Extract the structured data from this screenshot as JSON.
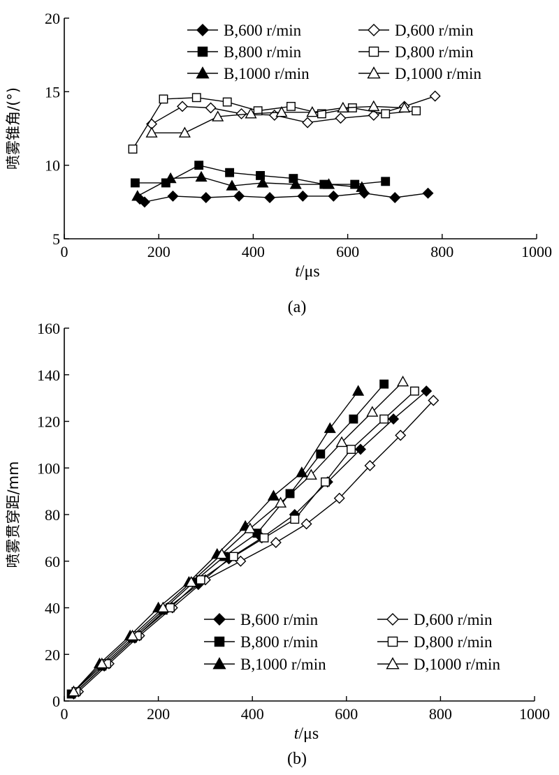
{
  "chart_data": [
    {
      "type": "line",
      "caption": "(a)",
      "xlabel_italic": "t",
      "xlabel_unit": "/μs",
      "ylabel": "喷雾锥角/(°)",
      "xlim": [
        0,
        1000
      ],
      "ylim": [
        5,
        20
      ],
      "xticks": [
        0,
        200,
        400,
        600,
        800,
        1000
      ],
      "yticks": [
        5,
        10,
        15,
        20
      ],
      "legend": "top",
      "series": [
        {
          "name": "B,600 r/min",
          "marker": "diamond",
          "filled": true,
          "x": [
            160,
            170,
            230,
            300,
            370,
            435,
            505,
            570,
            635,
            700,
            770
          ],
          "y": [
            7.7,
            7.5,
            7.9,
            7.8,
            7.9,
            7.8,
            7.9,
            7.9,
            8.1,
            7.8,
            8.1
          ]
        },
        {
          "name": "D,600 r/min",
          "marker": "diamond",
          "filled": false,
          "x": [
            185,
            250,
            310,
            375,
            445,
            515,
            585,
            655,
            720,
            785
          ],
          "y": [
            12.8,
            14.0,
            13.9,
            13.5,
            13.4,
            12.9,
            13.2,
            13.4,
            14.0,
            14.7
          ]
        },
        {
          "name": "B,800 r/min",
          "marker": "square",
          "filled": true,
          "x": [
            150,
            215,
            285,
            350,
            415,
            485,
            550,
            615,
            680
          ],
          "y": [
            8.8,
            8.8,
            10.0,
            9.5,
            9.3,
            9.1,
            8.7,
            8.7,
            8.9
          ]
        },
        {
          "name": "D,800 r/min",
          "marker": "square",
          "filled": false,
          "x": [
            145,
            210,
            280,
            345,
            410,
            480,
            545,
            610,
            680,
            745
          ],
          "y": [
            11.1,
            14.5,
            14.6,
            14.3,
            13.7,
            14.0,
            13.5,
            13.9,
            13.5,
            13.7
          ]
        },
        {
          "name": "B,1000 r/min",
          "marker": "triangle",
          "filled": true,
          "x": [
            155,
            225,
            290,
            355,
            420,
            490,
            560,
            630
          ],
          "y": [
            7.9,
            9.1,
            9.2,
            8.6,
            8.8,
            8.7,
            8.7,
            8.5
          ]
        },
        {
          "name": "D,1000 r/min",
          "marker": "triangle",
          "filled": false,
          "x": [
            185,
            255,
            325,
            395,
            460,
            525,
            590,
            655,
            720
          ],
          "y": [
            12.2,
            12.2,
            13.3,
            13.5,
            13.6,
            13.6,
            13.9,
            14.0,
            13.9
          ]
        }
      ]
    },
    {
      "type": "line",
      "caption": "(b)",
      "xlabel_italic": "t",
      "xlabel_unit": "/μs",
      "ylabel": "喷雾贯穿距/mm",
      "xlim": [
        0,
        1000
      ],
      "ylim": [
        0,
        160
      ],
      "xticks": [
        0,
        200,
        400,
        600,
        800,
        1000
      ],
      "yticks": [
        0,
        20,
        40,
        60,
        80,
        100,
        120,
        140,
        160
      ],
      "legend": "bottom-right",
      "series": [
        {
          "name": "B,600 r/min",
          "marker": "diamond",
          "filled": true,
          "x": [
            20,
            85,
            150,
            220,
            285,
            350,
            420,
            490,
            560,
            630,
            700,
            770
          ],
          "y": [
            3,
            15,
            27,
            40,
            50,
            61,
            70,
            80,
            94,
            108,
            121,
            133
          ]
        },
        {
          "name": "D,600 r/min",
          "marker": "diamond",
          "filled": false,
          "x": [
            30,
            95,
            160,
            230,
            300,
            375,
            450,
            515,
            585,
            650,
            715,
            785
          ],
          "y": [
            4,
            16,
            28,
            40,
            52,
            60,
            68,
            76,
            87,
            101,
            114,
            129
          ]
        },
        {
          "name": "B,800 r/min",
          "marker": "square",
          "filled": true,
          "x": [
            15,
            80,
            145,
            210,
            275,
            340,
            410,
            480,
            545,
            615,
            680
          ],
          "y": [
            3,
            15,
            27,
            39,
            51,
            62,
            72,
            89,
            106,
            121,
            136
          ]
        },
        {
          "name": "D,800 r/min",
          "marker": "square",
          "filled": false,
          "x": [
            25,
            90,
            155,
            225,
            290,
            360,
            425,
            490,
            555,
            610,
            680,
            745
          ],
          "y": [
            4,
            16,
            28,
            40,
            52,
            62,
            70,
            78,
            94,
            108,
            121,
            133
          ]
        },
        {
          "name": "B,1000 r/min",
          "marker": "triangle",
          "filled": true,
          "x": [
            20,
            75,
            140,
            200,
            265,
            325,
            385,
            445,
            505,
            565,
            625
          ],
          "y": [
            4,
            16,
            28,
            40,
            51,
            63,
            75,
            88,
            98,
            117,
            133
          ]
        },
        {
          "name": "D,1000 r/min",
          "marker": "triangle",
          "filled": false,
          "x": [
            20,
            80,
            145,
            210,
            270,
            335,
            395,
            460,
            525,
            590,
            655,
            720
          ],
          "y": [
            4,
            16,
            28,
            40,
            51,
            63,
            74,
            85,
            97,
            111,
            124,
            137
          ]
        }
      ]
    }
  ]
}
